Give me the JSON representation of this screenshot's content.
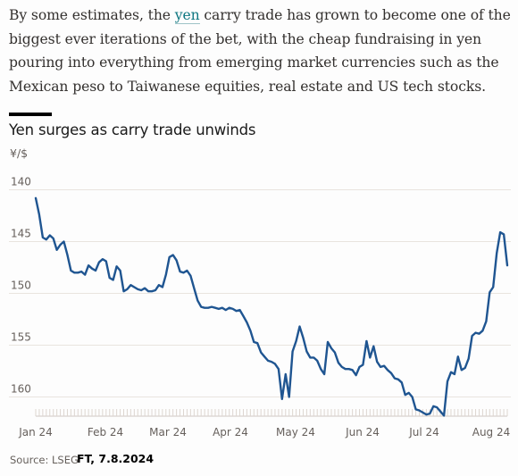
{
  "article": {
    "text_before_link": "By some estimates, the ",
    "link_text": "yen",
    "text_after_link": " carry trade has grown to become one of the biggest ever iterations of the bet, with the cheap fundraising in yen pouring into everything from emerging market currencies such as the Mexican peso to Taiwanese equities, real estate and US tech stocks."
  },
  "chart_data": {
    "type": "line",
    "title": "Yen surges as carry trade unwinds",
    "ylabel": "¥/$",
    "y_inverted": true,
    "ylim": [
      138,
      162
    ],
    "yticks": [
      "140",
      "145",
      "150",
      "155",
      "160"
    ],
    "ytick_values": [
      140,
      145,
      150,
      155,
      160
    ],
    "xticks": [
      "Jan 24",
      "Feb 24",
      "Mar 24",
      "Apr 24",
      "May 24",
      "Jun 24",
      "Jul 24",
      "Aug 24"
    ],
    "grid": true,
    "line_color": "#1f5591",
    "series": [
      {
        "values": [
          140.8,
          142.4,
          144.6,
          144.8,
          144.4,
          144.7,
          145.8,
          145.3,
          145.0,
          146.3,
          147.8,
          148.0,
          148.0,
          147.9,
          148.2,
          147.3,
          147.6,
          147.8,
          147.0,
          146.7,
          146.9,
          148.5,
          148.7,
          147.4,
          147.8,
          149.8,
          149.6,
          149.2,
          149.4,
          149.6,
          149.7,
          149.5,
          149.8,
          149.8,
          149.7,
          149.2,
          149.4,
          148.2,
          146.5,
          146.3,
          146.8,
          147.9,
          148.0,
          147.8,
          148.3,
          149.5,
          150.7,
          151.3,
          151.4,
          151.4,
          151.3,
          151.4,
          151.5,
          151.4,
          151.6,
          151.4,
          151.5,
          151.7,
          151.6,
          152.2,
          152.8,
          153.6,
          154.7,
          154.8,
          155.7,
          156.1,
          156.5,
          156.6,
          156.8,
          157.3,
          160.2,
          157.8,
          160.0,
          155.6,
          154.6,
          153.2,
          154.3,
          155.6,
          156.2,
          156.2,
          156.5,
          157.3,
          157.8,
          154.7,
          155.3,
          155.7,
          156.7,
          157.1,
          157.3,
          157.3,
          157.4,
          157.9,
          157.1,
          156.9,
          154.6,
          156.2,
          155.1,
          156.6,
          157.1,
          157.0,
          157.4,
          157.7,
          158.2,
          158.3,
          158.6,
          159.8,
          159.6,
          160.0,
          161.2,
          161.3,
          161.5,
          161.7,
          161.6,
          160.9,
          161.0,
          161.4,
          161.8,
          158.5,
          157.6,
          157.8,
          156.1,
          157.4,
          157.2,
          156.3,
          154.1,
          153.8,
          153.9,
          153.6,
          152.7,
          149.9,
          149.4,
          146.1,
          144.1,
          144.3,
          147.3
        ],
        "dates_note": ""
      }
    ],
    "source_label": "Source: LSEG",
    "credit_text": "FT, 7.8.2024"
  }
}
